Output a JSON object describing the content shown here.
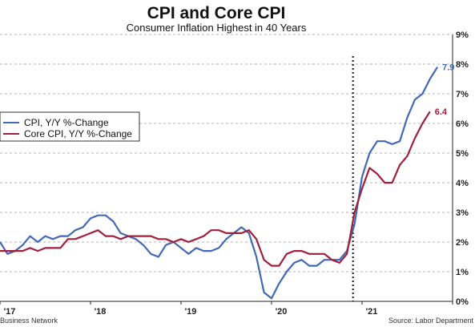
{
  "chart_data": {
    "type": "line",
    "title": "CPI and Core CPI",
    "subtitle": "Consumer Inflation Highest in 40 Years",
    "x_tick_labels": [
      "'17",
      "'18",
      "'19",
      "'20",
      "'21"
    ],
    "y_tick_labels": [
      "0%",
      "1%",
      "2%",
      "3%",
      "4%",
      "5%",
      "6%",
      "7%",
      "8%",
      "9%"
    ],
    "ylim": [
      0,
      9
    ],
    "x_range": [
      2017.0,
      2022.0
    ],
    "y_axis_side": "right",
    "grid": "horizontal-dashed",
    "legend_position": "left",
    "event_marker_x": 2020.9,
    "series": [
      {
        "name": "CPI, Y/Y %-Change",
        "color": "#4169b5",
        "end_label": "7.9",
        "points": [
          [
            2017.0,
            2.0
          ],
          [
            2017.083,
            1.6
          ],
          [
            2017.167,
            1.7
          ],
          [
            2017.25,
            1.9
          ],
          [
            2017.333,
            2.2
          ],
          [
            2017.417,
            2.0
          ],
          [
            2017.5,
            2.2
          ],
          [
            2017.583,
            2.1
          ],
          [
            2017.667,
            2.2
          ],
          [
            2017.75,
            2.2
          ],
          [
            2017.833,
            2.4
          ],
          [
            2017.917,
            2.5
          ],
          [
            2018.0,
            2.8
          ],
          [
            2018.083,
            2.9
          ],
          [
            2018.167,
            2.9
          ],
          [
            2018.25,
            2.7
          ],
          [
            2018.333,
            2.3
          ],
          [
            2018.417,
            2.2
          ],
          [
            2018.5,
            2.1
          ],
          [
            2018.583,
            1.9
          ],
          [
            2018.667,
            1.6
          ],
          [
            2018.75,
            1.5
          ],
          [
            2018.833,
            1.9
          ],
          [
            2018.917,
            2.0
          ],
          [
            2019.0,
            1.8
          ],
          [
            2019.083,
            1.6
          ],
          [
            2019.167,
            1.8
          ],
          [
            2019.25,
            1.7
          ],
          [
            2019.333,
            1.7
          ],
          [
            2019.417,
            1.8
          ],
          [
            2019.5,
            2.1
          ],
          [
            2019.583,
            2.3
          ],
          [
            2019.667,
            2.5
          ],
          [
            2019.75,
            2.3
          ],
          [
            2019.833,
            1.5
          ],
          [
            2019.917,
            0.3
          ],
          [
            2020.0,
            0.1
          ],
          [
            2020.083,
            0.6
          ],
          [
            2020.167,
            1.0
          ],
          [
            2020.25,
            1.3
          ],
          [
            2020.333,
            1.4
          ],
          [
            2020.417,
            1.2
          ],
          [
            2020.5,
            1.2
          ],
          [
            2020.583,
            1.4
          ],
          [
            2020.667,
            1.4
          ],
          [
            2020.75,
            1.4
          ],
          [
            2020.833,
            1.7
          ],
          [
            2020.917,
            2.6
          ],
          [
            2021.0,
            4.2
          ],
          [
            2021.083,
            5.0
          ],
          [
            2021.167,
            5.4
          ],
          [
            2021.25,
            5.4
          ],
          [
            2021.333,
            5.3
          ],
          [
            2021.417,
            5.4
          ],
          [
            2021.5,
            6.2
          ],
          [
            2021.583,
            6.8
          ],
          [
            2021.667,
            7.0
          ],
          [
            2021.75,
            7.5
          ],
          [
            2021.833,
            7.9
          ]
        ]
      },
      {
        "name": "Core CPI, Y/Y %-Change",
        "color": "#a0203c",
        "end_label": "6.4",
        "points": [
          [
            2017.0,
            1.7
          ],
          [
            2017.083,
            1.7
          ],
          [
            2017.167,
            1.7
          ],
          [
            2017.25,
            1.7
          ],
          [
            2017.333,
            1.8
          ],
          [
            2017.417,
            1.7
          ],
          [
            2017.5,
            1.8
          ],
          [
            2017.583,
            1.8
          ],
          [
            2017.667,
            1.8
          ],
          [
            2017.75,
            2.1
          ],
          [
            2017.833,
            2.1
          ],
          [
            2017.917,
            2.2
          ],
          [
            2018.0,
            2.3
          ],
          [
            2018.083,
            2.4
          ],
          [
            2018.167,
            2.2
          ],
          [
            2018.25,
            2.2
          ],
          [
            2018.333,
            2.1
          ],
          [
            2018.417,
            2.2
          ],
          [
            2018.5,
            2.2
          ],
          [
            2018.583,
            2.2
          ],
          [
            2018.667,
            2.2
          ],
          [
            2018.75,
            2.1
          ],
          [
            2018.833,
            2.1
          ],
          [
            2018.917,
            2.0
          ],
          [
            2019.0,
            2.1
          ],
          [
            2019.083,
            2.0
          ],
          [
            2019.167,
            2.1
          ],
          [
            2019.25,
            2.2
          ],
          [
            2019.333,
            2.4
          ],
          [
            2019.417,
            2.4
          ],
          [
            2019.5,
            2.3
          ],
          [
            2019.583,
            2.3
          ],
          [
            2019.667,
            2.3
          ],
          [
            2019.75,
            2.4
          ],
          [
            2019.833,
            2.1
          ],
          [
            2019.917,
            1.4
          ],
          [
            2020.0,
            1.2
          ],
          [
            2020.083,
            1.2
          ],
          [
            2020.167,
            1.6
          ],
          [
            2020.25,
            1.7
          ],
          [
            2020.333,
            1.7
          ],
          [
            2020.417,
            1.6
          ],
          [
            2020.5,
            1.6
          ],
          [
            2020.583,
            1.6
          ],
          [
            2020.667,
            1.4
          ],
          [
            2020.75,
            1.3
          ],
          [
            2020.833,
            1.6
          ],
          [
            2020.917,
            3.0
          ],
          [
            2021.0,
            3.8
          ],
          [
            2021.083,
            4.5
          ],
          [
            2021.167,
            4.3
          ],
          [
            2021.25,
            4.0
          ],
          [
            2021.333,
            4.0
          ],
          [
            2021.417,
            4.6
          ],
          [
            2021.5,
            4.9
          ],
          [
            2021.583,
            5.5
          ],
          [
            2021.667,
            6.0
          ],
          [
            2021.75,
            6.4
          ]
        ]
      }
    ],
    "footer_left": "Business Network",
    "footer_right": "Source: Labor Department"
  }
}
